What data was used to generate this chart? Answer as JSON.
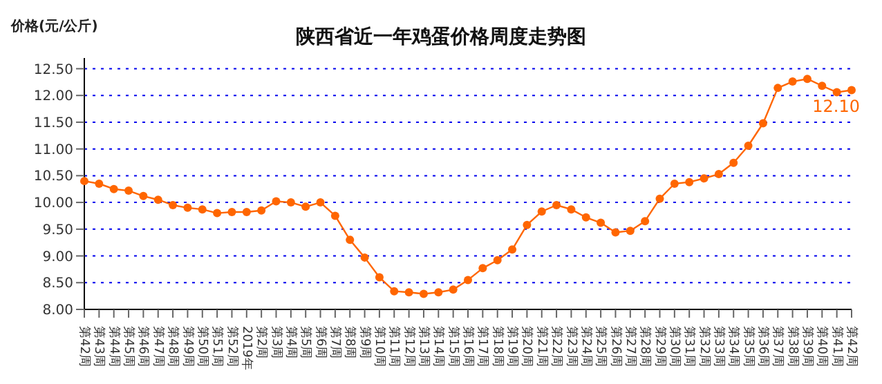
{
  "chart_data": {
    "type": "line",
    "title": "陕西省近一年鸡蛋价格周度走势图",
    "ylabel": "价格(元/公斤)",
    "categories": [
      "第42周",
      "第43周",
      "第44周",
      "第45周",
      "第46周",
      "第47周",
      "第48周",
      "第49周",
      "第50周",
      "第51周",
      "第52周",
      "2019年",
      "第2周",
      "第3周",
      "第4周",
      "第5周",
      "第6周",
      "第7周",
      "第8周",
      "第9周",
      "第10周",
      "第11周",
      "第12周",
      "第13周",
      "第14周",
      "第15周",
      "第16周",
      "第17周",
      "第18周",
      "第19周",
      "第20周",
      "第21周",
      "第22周",
      "第23周",
      "第24周",
      "第25周",
      "第26周",
      "第27周",
      "第28周",
      "第29周",
      "第30周",
      "第31周",
      "第32周",
      "第33周",
      "第34周",
      "第35周",
      "第36周",
      "第37周",
      "第38周",
      "第39周",
      "第40周",
      "第41周",
      "第42周"
    ],
    "series": [
      {
        "color": "#ff6600",
        "values": [
          10.4,
          10.35,
          10.25,
          10.22,
          10.12,
          10.05,
          9.95,
          9.9,
          9.87,
          9.8,
          9.82,
          9.82,
          9.85,
          10.02,
          10.0,
          9.92,
          10.0,
          9.75,
          9.3,
          8.97,
          8.6,
          8.34,
          8.32,
          8.29,
          8.32,
          8.37,
          8.55,
          8.77,
          8.92,
          9.12,
          9.58,
          9.83,
          9.95,
          9.87,
          9.72,
          9.62,
          9.44,
          9.47,
          9.65,
          10.07,
          10.35,
          10.38,
          10.45,
          10.53,
          10.74,
          11.06,
          11.48,
          12.14,
          12.26,
          12.31,
          12.18,
          12.06,
          12.1
        ],
        "value_labels": [
          null,
          null,
          null,
          null,
          null,
          null,
          null,
          null,
          null,
          null,
          null,
          null,
          null,
          null,
          null,
          null,
          null,
          null,
          null,
          null,
          null,
          null,
          null,
          null,
          null,
          null,
          null,
          null,
          null,
          null,
          null,
          null,
          null,
          null,
          null,
          null,
          null,
          null,
          null,
          null,
          null,
          null,
          null,
          null,
          null,
          null,
          null,
          null,
          null,
          null,
          null,
          null,
          "12.10"
        ]
      }
    ],
    "ylim": [
      8,
      12.7
    ],
    "yticks": [
      {
        "value": 8,
        "label": "8.00"
      },
      {
        "value": 8.5,
        "label": "8.50"
      },
      {
        "value": 9,
        "label": "9.00"
      },
      {
        "value": 9.5,
        "label": "9.50"
      },
      {
        "value": 10,
        "label": "10.00"
      },
      {
        "value": 10.5,
        "label": "10.50"
      },
      {
        "value": 11,
        "label": "11.00"
      },
      {
        "value": 11.5,
        "label": "11.50"
      },
      {
        "value": 12,
        "label": "12.00"
      },
      {
        "value": 12.5,
        "label": "12.50"
      }
    ],
    "grid": "y",
    "marker": "circle",
    "line_style": "solid"
  }
}
